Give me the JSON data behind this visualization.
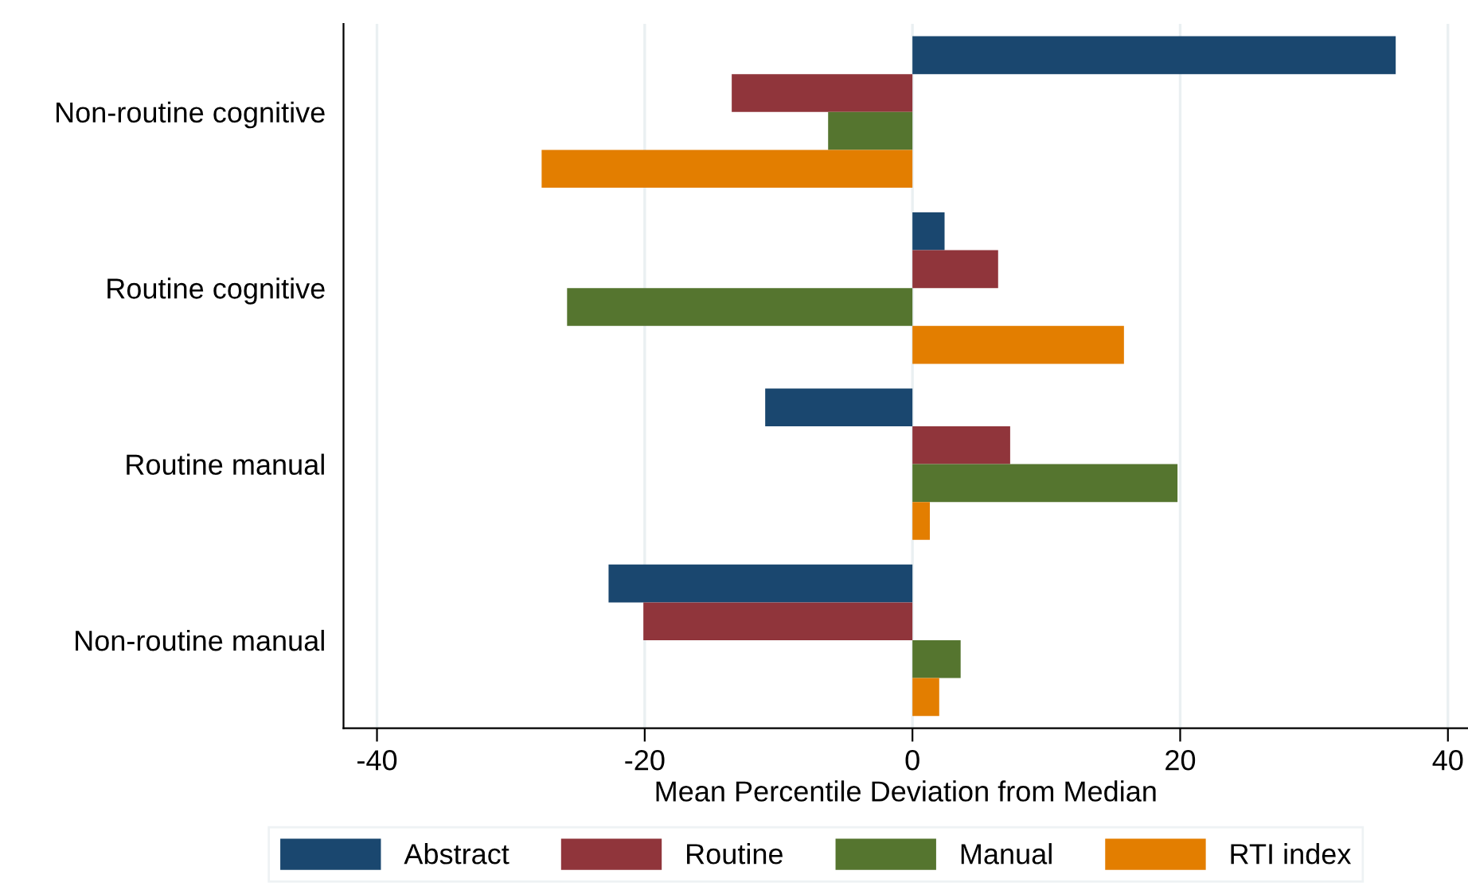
{
  "chart_data": {
    "type": "bar",
    "orientation": "horizontal",
    "xlabel": "Mean Percentile Deviation from Median",
    "categories": [
      "Non-routine cognitive",
      "Routine cognitive",
      "Routine manual",
      "Non-routine manual"
    ],
    "series": [
      {
        "name": "Abstract",
        "color": "#1a476f",
        "values": [
          36.1,
          2.4,
          -11.0,
          -22.7
        ]
      },
      {
        "name": "Routine",
        "color": "#90353b",
        "values": [
          -13.5,
          6.4,
          7.3,
          -20.1
        ]
      },
      {
        "name": "Manual",
        "color": "#55752f",
        "values": [
          -6.3,
          -25.8,
          19.8,
          3.6
        ]
      },
      {
        "name": "RTI index",
        "color": "#e37e00",
        "values": [
          -27.7,
          15.8,
          1.3,
          2.0
        ]
      }
    ],
    "xlim": [
      -42.5,
      41.5
    ],
    "xticks": [
      -40,
      -20,
      0,
      20,
      40
    ],
    "grid": "x",
    "legend": "bottom"
  }
}
